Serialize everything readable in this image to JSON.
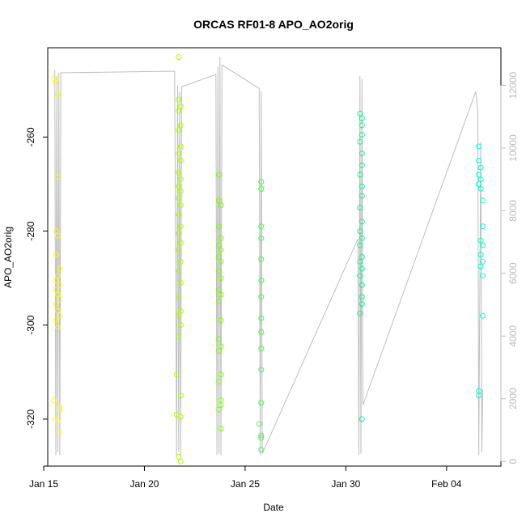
{
  "chart_data": {
    "type": "scatter",
    "title": "ORCAS RF01-8 APO_AO2orig",
    "xlabel": "Date",
    "ylabel": "APO_AO2orig",
    "x_ticks": [
      "Jan 15",
      "Jan 20",
      "Jan 25",
      "Jan 30",
      "Feb 04"
    ],
    "y_ticks": [
      -320,
      -300,
      -280,
      -260
    ],
    "y_right_ticks": [
      0,
      2000,
      4000,
      6000,
      8000,
      10000,
      12000
    ],
    "xlim_days": [
      15.2,
      37.7
    ],
    "ylim": [
      -330,
      -241
    ],
    "y_right_lim": [
      -150,
      13200
    ],
    "grid": false,
    "secondary_line_color": "#bebebe",
    "series": [
      {
        "color": "#ffff00",
        "points": [
          [
            15.5,
            -247.5
          ],
          [
            15.6,
            -248.5
          ],
          [
            15.7,
            -251.0
          ],
          [
            15.7,
            -268.5
          ],
          [
            15.6,
            -280.0
          ],
          [
            15.7,
            -281.0
          ],
          [
            15.6,
            -285.0
          ],
          [
            15.8,
            -288.0
          ],
          [
            15.7,
            -289.5
          ],
          [
            15.6,
            -290.5
          ],
          [
            15.8,
            -291.5
          ],
          [
            15.6,
            -292.5
          ],
          [
            15.7,
            -293.5
          ],
          [
            15.8,
            -294.5
          ],
          [
            15.6,
            -295.5
          ],
          [
            15.7,
            -297.0
          ],
          [
            15.8,
            -298.0
          ],
          [
            15.6,
            -299.0
          ],
          [
            15.7,
            -300.5
          ],
          [
            15.5,
            -316.0
          ],
          [
            15.6,
            -320.0
          ],
          [
            15.7,
            -320.5
          ],
          [
            15.8,
            -317.5
          ],
          [
            15.8,
            -318.0
          ],
          [
            15.8,
            -323.0
          ]
        ]
      },
      {
        "color": "#aaff00",
        "points": [
          [
            21.7,
            -243.0
          ],
          [
            21.7,
            -252.0
          ],
          [
            21.8,
            -253.5
          ],
          [
            21.7,
            -254.5
          ],
          [
            21.8,
            -257.5
          ],
          [
            21.7,
            -258.5
          ],
          [
            21.8,
            -262.0
          ],
          [
            21.7,
            -263.5
          ],
          [
            21.8,
            -265.0
          ],
          [
            21.7,
            -267.5
          ],
          [
            21.8,
            -269.0
          ],
          [
            21.7,
            -270.5
          ],
          [
            21.8,
            -271.5
          ],
          [
            21.7,
            -273.0
          ],
          [
            21.8,
            -274.5
          ],
          [
            21.7,
            -276.5
          ],
          [
            21.8,
            -279.0
          ],
          [
            21.7,
            -280.5
          ],
          [
            21.8,
            -282.5
          ],
          [
            21.7,
            -284.0
          ],
          [
            21.8,
            -286.5
          ],
          [
            21.7,
            -288.5
          ],
          [
            21.8,
            -291.0
          ],
          [
            21.7,
            -294.0
          ],
          [
            21.8,
            -297.0
          ],
          [
            21.7,
            -298.0
          ],
          [
            21.8,
            -300.0
          ],
          [
            21.7,
            -302.5
          ],
          [
            21.6,
            -310.5
          ],
          [
            21.8,
            -315.0
          ],
          [
            21.6,
            -319.0
          ],
          [
            21.8,
            -319.5
          ],
          [
            21.7,
            -328.0
          ],
          [
            21.8,
            -329.0
          ]
        ]
      },
      {
        "color": "#77ff00",
        "points": [
          [
            23.7,
            -268.0
          ],
          [
            23.7,
            -273.5
          ],
          [
            23.8,
            -274.5
          ],
          [
            23.7,
            -279.0
          ],
          [
            23.8,
            -281.5
          ],
          [
            23.7,
            -283.0
          ],
          [
            23.8,
            -284.0
          ],
          [
            23.7,
            -285.5
          ],
          [
            23.8,
            -286.5
          ],
          [
            23.7,
            -288.5
          ],
          [
            23.8,
            -290.0
          ],
          [
            23.7,
            -292.5
          ],
          [
            23.8,
            -293.5
          ],
          [
            23.7,
            -295.0
          ],
          [
            23.8,
            -299.0
          ],
          [
            23.7,
            -303.0
          ],
          [
            23.8,
            -304.5
          ],
          [
            23.7,
            -305.5
          ],
          [
            23.8,
            -310.5
          ],
          [
            23.7,
            -312.0
          ],
          [
            23.8,
            -316.0
          ],
          [
            23.8,
            -317.0
          ],
          [
            23.7,
            -318.0
          ],
          [
            23.8,
            -322.0
          ]
        ]
      },
      {
        "color": "#44ff44",
        "points": [
          [
            25.8,
            -269.5
          ],
          [
            25.8,
            -271.0
          ],
          [
            25.8,
            -279.0
          ],
          [
            25.8,
            -281.5
          ],
          [
            25.8,
            -286.0
          ],
          [
            25.8,
            -290.5
          ],
          [
            25.8,
            -294.0
          ],
          [
            25.8,
            -298.5
          ],
          [
            25.8,
            -301.5
          ],
          [
            25.8,
            -305.0
          ],
          [
            25.8,
            -309.5
          ],
          [
            25.8,
            -316.5
          ],
          [
            25.7,
            -321.0
          ],
          [
            25.8,
            -323.5
          ],
          [
            25.8,
            -324.0
          ],
          [
            25.8,
            -326.5
          ]
        ]
      },
      {
        "color": "#00ff88",
        "points": [
          [
            30.7,
            -255.0
          ],
          [
            30.8,
            -256.0
          ],
          [
            30.8,
            -257.5
          ],
          [
            30.8,
            -259.5
          ],
          [
            30.7,
            -261.0
          ],
          [
            30.8,
            -263.5
          ],
          [
            30.8,
            -266.0
          ],
          [
            30.7,
            -268.0
          ],
          [
            30.8,
            -270.5
          ],
          [
            30.8,
            -272.5
          ],
          [
            30.7,
            -275.0
          ],
          [
            30.8,
            -278.0
          ],
          [
            30.7,
            -280.0
          ],
          [
            30.8,
            -281.5
          ],
          [
            30.7,
            -283.0
          ],
          [
            30.8,
            -285.5
          ],
          [
            30.7,
            -286.5
          ],
          [
            30.8,
            -288.0
          ],
          [
            30.7,
            -289.5
          ],
          [
            30.8,
            -291.5
          ],
          [
            30.8,
            -294.0
          ],
          [
            30.8,
            -295.5
          ],
          [
            30.7,
            -297.5
          ],
          [
            30.8,
            -320.0
          ]
        ]
      },
      {
        "color": "#00ffcc",
        "points": [
          [
            36.6,
            -262.0
          ],
          [
            36.6,
            -265.0
          ],
          [
            36.7,
            -266.5
          ],
          [
            36.6,
            -268.0
          ],
          [
            36.7,
            -269.0
          ],
          [
            36.6,
            -270.0
          ],
          [
            36.7,
            -271.0
          ],
          [
            36.8,
            -273.5
          ],
          [
            36.8,
            -279.0
          ],
          [
            36.7,
            -282.0
          ],
          [
            36.8,
            -283.0
          ],
          [
            36.7,
            -285.0
          ],
          [
            36.8,
            -286.5
          ],
          [
            36.7,
            -287.5
          ],
          [
            36.8,
            -289.5
          ],
          [
            36.8,
            -298.0
          ],
          [
            36.6,
            -314.0
          ],
          [
            36.6,
            -315.0
          ]
        ]
      }
    ],
    "secondary_line_points": [
      [
        15.55,
        12500
      ],
      [
        15.6,
        200
      ],
      [
        15.65,
        12300
      ],
      [
        15.7,
        300
      ],
      [
        15.75,
        12400
      ],
      [
        15.8,
        200
      ],
      [
        15.85,
        12400
      ],
      [
        21.5,
        12450
      ],
      [
        21.6,
        200
      ],
      [
        21.65,
        12000
      ],
      [
        21.7,
        300
      ],
      [
        21.75,
        11800
      ],
      [
        21.8,
        200
      ],
      [
        21.85,
        11950
      ],
      [
        23.55,
        12350
      ],
      [
        23.6,
        200
      ],
      [
        23.65,
        12600
      ],
      [
        23.7,
        250
      ],
      [
        23.75,
        12900
      ],
      [
        23.8,
        200
      ],
      [
        23.85,
        12650
      ],
      [
        25.7,
        11900
      ],
      [
        25.75,
        200
      ],
      [
        25.8,
        11800
      ],
      [
        25.85,
        250
      ],
      [
        30.6,
        7100
      ],
      [
        30.65,
        200
      ],
      [
        30.7,
        12300
      ],
      [
        30.75,
        250
      ],
      [
        30.8,
        12200
      ],
      [
        30.85,
        1800
      ],
      [
        36.45,
        11800
      ],
      [
        36.55,
        11200
      ],
      [
        36.6,
        200
      ],
      [
        36.7,
        10200
      ],
      [
        36.75,
        300
      ],
      [
        36.8,
        2300
      ]
    ]
  }
}
